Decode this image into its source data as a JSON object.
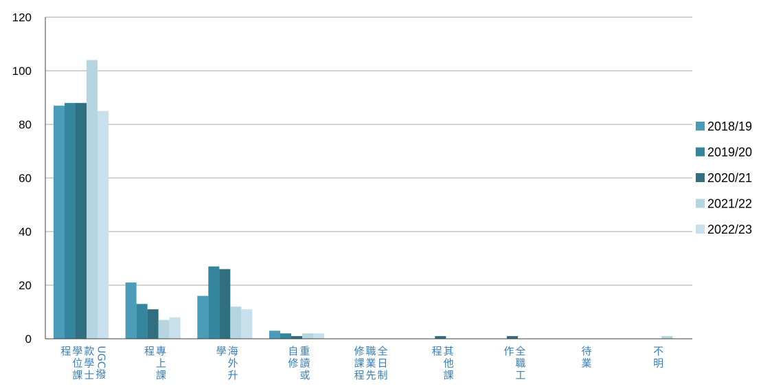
{
  "colors": {
    "series": [
      "#4a9cb8",
      "#34859e",
      "#2f6f80",
      "#b5d6e1",
      "#c7e0ec"
    ],
    "category_text": "#3a7fb7"
  },
  "chart_data": {
    "type": "bar",
    "title": "",
    "xlabel": "",
    "ylabel": "",
    "ylim": [
      0,
      120
    ],
    "yticks": [
      0,
      20,
      40,
      60,
      80,
      100,
      120
    ],
    "grid": true,
    "legend_position": "right",
    "categories": [
      "UGC撥款學士學位課程",
      "專上課程",
      "海外升學",
      "重讀或自修",
      "全日制職業先修課程",
      "其他課程",
      "全職工作",
      "待業",
      "不明"
    ],
    "category_columns": [
      [
        "UGC撥",
        "款學士",
        "學位課",
        "程"
      ],
      [
        "專上課",
        "程"
      ],
      [
        "海外升",
        "學"
      ],
      [
        "重讀或",
        "自修"
      ],
      [
        "全日制",
        "職業先",
        "修課程"
      ],
      [
        "其他課",
        "程"
      ],
      [
        "全職工",
        "作"
      ],
      [
        "待業"
      ],
      [
        "不明"
      ]
    ],
    "series": [
      {
        "name": "2018/19",
        "values": [
          87,
          21,
          16,
          3,
          0,
          0,
          0,
          0,
          0
        ]
      },
      {
        "name": "2019/20",
        "values": [
          88,
          13,
          27,
          2,
          0,
          0,
          0,
          0,
          0
        ]
      },
      {
        "name": "2020/21",
        "values": [
          88,
          11,
          26,
          1,
          0,
          1,
          1,
          0,
          0
        ]
      },
      {
        "name": "2021/22",
        "values": [
          104,
          7,
          12,
          2,
          0,
          0,
          0,
          0,
          1
        ]
      },
      {
        "name": "2022/23",
        "values": [
          85,
          8,
          11,
          2,
          0,
          0,
          0,
          0,
          0
        ]
      }
    ]
  }
}
